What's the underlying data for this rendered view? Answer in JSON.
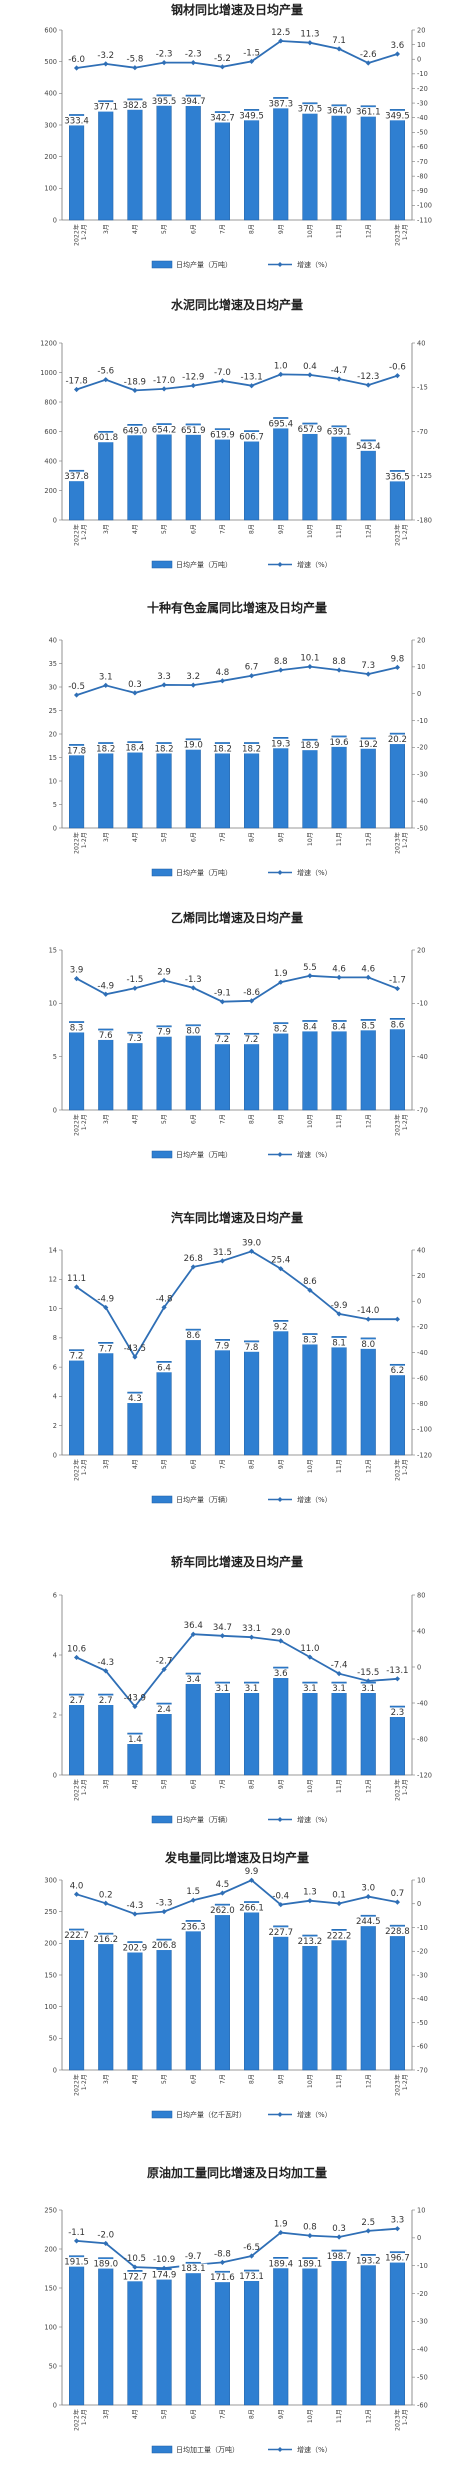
{
  "chart_data": [
    {
      "type": "bar+line",
      "title": "钢材同比增速及日均产量",
      "categories": [
        "2022年|1-2月",
        "3月",
        "4月",
        "5月",
        "6月",
        "7月",
        "8月",
        "9月",
        "10月",
        "11月",
        "12月",
        "2023年|1-2月"
      ],
      "series": [
        {
          "name": "日均产量（万吨）",
          "type": "bar",
          "axis": "left",
          "values": [
            333.4,
            377.1,
            382.8,
            395.5,
            394.7,
            342.7,
            349.5,
            387.3,
            370.5,
            364.0,
            361.1,
            349.5
          ],
          "labels": [
            "333.4",
            "377.1",
            "382.8",
            "395.5",
            "394.7",
            "342.7",
            "349.5",
            "387.3",
            "370.5",
            "364.0",
            "361.1",
            "349.5"
          ]
        },
        {
          "name": "增速（%）",
          "type": "line",
          "axis": "right",
          "values": [
            -6.0,
            -3.2,
            -5.8,
            -2.3,
            -2.3,
            -5.2,
            -1.5,
            12.5,
            11.3,
            7.1,
            -2.6,
            3.6
          ],
          "labels": [
            "-6.0",
            "-3.2",
            "-5.8",
            "-2.3",
            "-2.3",
            "-5.2",
            "-1.5",
            "12.5",
            "11.3",
            "7.1",
            "-2.6",
            "3.6"
          ]
        }
      ],
      "left_axis": {
        "min": 0,
        "max": 600,
        "ticks": [
          "0",
          "100",
          "200",
          "300",
          "400",
          "500",
          "600"
        ]
      },
      "right_axis": {
        "min": -110,
        "max": 20,
        "ticks": [
          "20",
          "10",
          "0",
          "-10",
          "-20",
          "-30",
          "-40",
          "-50",
          "-60",
          "-70",
          "-80",
          "-90",
          "-100",
          "-110"
        ]
      },
      "colors": {
        "bar": "#2f7fd1",
        "line": "#2f6fb6"
      }
    },
    {
      "type": "bar+line",
      "title": "水泥同比增速及日均产量",
      "categories": [
        "2022年|1-2月",
        "3月",
        "4月",
        "5月",
        "6月",
        "7月",
        "8月",
        "9月",
        "10月",
        "11月",
        "12月",
        "2023年|1-2月"
      ],
      "series": [
        {
          "name": "日均产量（万吨）",
          "type": "bar",
          "axis": "left",
          "values": [
            337.8,
            601.8,
            649.0,
            654.2,
            651.9,
            619.9,
            606.7,
            695.4,
            657.9,
            639.1,
            543.4,
            336.5
          ],
          "labels": [
            "337.8",
            "601.8",
            "649.0",
            "654.2",
            "651.9",
            "619.9",
            "606.7",
            "695.4",
            "657.9",
            "639.1",
            "543.4",
            "336.5"
          ]
        },
        {
          "name": "增速（%）",
          "type": "line",
          "axis": "right",
          "values": [
            -17.8,
            -5.6,
            -18.9,
            -17.0,
            -12.9,
            -7.0,
            -13.1,
            1.0,
            0.4,
            -4.7,
            -12.3,
            -0.6
          ],
          "labels": [
            "-17.8",
            "-5.6",
            "-18.9",
            "-17.0",
            "-12.9",
            "-7.0",
            "-13.1",
            "1.0",
            "0.4",
            "-4.7",
            "-12.3",
            "-0.6"
          ]
        }
      ],
      "left_axis": {
        "min": 0,
        "max": 1200,
        "ticks": [
          "0",
          "200",
          "400",
          "600",
          "800",
          "1000",
          "1200"
        ]
      },
      "right_axis": {
        "min": -180,
        "max": 40,
        "ticks": [
          "40",
          "-15",
          "-70",
          "-125",
          "-180"
        ]
      },
      "colors": {
        "bar": "#2f7fd1",
        "line": "#2f6fb6"
      }
    },
    {
      "type": "bar+line",
      "title": "十种有色金属同比增速及日均产量",
      "categories": [
        "2022年|1-2月",
        "3月",
        "4月",
        "5月",
        "6月",
        "7月",
        "8月",
        "9月",
        "10月",
        "11月",
        "12月",
        "2023年|1-2月"
      ],
      "series": [
        {
          "name": "日均产量（万吨）",
          "type": "bar",
          "axis": "left",
          "values": [
            17.8,
            18.2,
            18.4,
            18.2,
            19.0,
            18.2,
            18.2,
            19.3,
            18.9,
            19.6,
            19.2,
            20.2
          ],
          "labels": [
            "17.8",
            "18.2",
            "18.4",
            "18.2",
            "19.0",
            "18.2",
            "18.2",
            "19.3",
            "18.9",
            "19.6",
            "19.2",
            "20.2"
          ]
        },
        {
          "name": "增速（%）",
          "type": "line",
          "axis": "right",
          "values": [
            -0.5,
            3.1,
            0.3,
            3.3,
            3.2,
            4.8,
            6.7,
            8.8,
            10.1,
            8.8,
            7.3,
            9.8
          ],
          "labels": [
            "-0.5",
            "3.1",
            "0.3",
            "3.3",
            "3.2",
            "4.8",
            "6.7",
            "8.8",
            "10.1",
            "8.8",
            "7.3",
            "9.8"
          ]
        }
      ],
      "left_axis": {
        "min": 0,
        "max": 40,
        "ticks": [
          "0",
          "5",
          "10",
          "15",
          "20",
          "25",
          "30",
          "35",
          "40"
        ]
      },
      "right_axis": {
        "min": -50,
        "max": 20,
        "ticks": [
          "20",
          "10",
          "0",
          "-10",
          "-20",
          "-30",
          "-40",
          "-50"
        ]
      },
      "colors": {
        "bar": "#2f7fd1",
        "line": "#2f6fb6"
      }
    },
    {
      "type": "bar+line",
      "title": "乙烯同比增速及日均产量",
      "categories": [
        "2022年|1-2月",
        "3月",
        "4月",
        "5月",
        "6月",
        "7月",
        "8月",
        "9月",
        "10月",
        "11月",
        "12月",
        "2023年|1-2月"
      ],
      "series": [
        {
          "name": "日均产量（万吨）",
          "type": "bar",
          "axis": "left",
          "values": [
            8.3,
            7.6,
            7.3,
            7.9,
            8.0,
            7.2,
            7.2,
            8.2,
            8.4,
            8.4,
            8.5,
            8.6
          ],
          "labels": [
            "8.3",
            "7.6",
            "7.3",
            "7.9",
            "8.0",
            "7.2",
            "7.2",
            "8.2",
            "8.4",
            "8.4",
            "8.5",
            "8.6"
          ]
        },
        {
          "name": "增速（%）",
          "type": "line",
          "axis": "right",
          "values": [
            3.9,
            -4.9,
            -1.5,
            2.9,
            -1.3,
            -9.1,
            -8.6,
            1.9,
            5.5,
            4.6,
            4.6,
            -1.7
          ],
          "labels": [
            "3.9",
            "-4.9",
            "-1.5",
            "2.9",
            "-1.3",
            "-9.1",
            "-8.6",
            "1.9",
            "5.5",
            "4.6",
            "4.6",
            "-1.7"
          ]
        }
      ],
      "left_axis": {
        "min": 0,
        "max": 15,
        "ticks": [
          "0",
          "5",
          "10",
          "15"
        ]
      },
      "right_axis": {
        "min": -70,
        "max": 20,
        "ticks": [
          "20",
          "-10",
          "-40",
          "-70"
        ]
      },
      "colors": {
        "bar": "#2f7fd1",
        "line": "#2f6fb6"
      }
    },
    {
      "type": "bar+line",
      "title": "汽车同比增速及日均产量",
      "categories": [
        "2022年|1-2月",
        "3月",
        "4月",
        "5月",
        "6月",
        "7月",
        "8月",
        "9月",
        "10月",
        "11月",
        "12月",
        "2023年|1-2月"
      ],
      "series": [
        {
          "name": "日均产量（万辆）",
          "type": "bar",
          "axis": "left",
          "values": [
            7.2,
            7.7,
            4.3,
            6.4,
            8.6,
            7.9,
            7.8,
            9.2,
            8.3,
            8.1,
            8.0,
            6.2
          ],
          "labels": [
            "7.2",
            "7.7",
            "4.3",
            "6.4",
            "8.6",
            "7.9",
            "7.8",
            "9.2",
            "8.3",
            "8.1",
            "8.0",
            "6.2"
          ]
        },
        {
          "name": "增速（%）",
          "type": "line",
          "axis": "right",
          "values": [
            11.1,
            -4.9,
            -43.5,
            -4.8,
            26.8,
            31.5,
            39.0,
            25.4,
            8.6,
            -9.9,
            -14.0,
            -14.0
          ],
          "labels": [
            "11.1",
            "-4.9",
            "-43.5",
            "-4.8",
            "26.8",
            "31.5",
            "39.0",
            "25.4",
            "8.6",
            "-9.9",
            "-14.0",
            ""
          ]
        }
      ],
      "left_axis": {
        "min": 0,
        "max": 14,
        "ticks": [
          "0",
          "2",
          "4",
          "6",
          "8",
          "10",
          "12",
          "14"
        ]
      },
      "right_axis": {
        "min": -120,
        "max": 40,
        "ticks": [
          "40",
          "20",
          "0",
          "-20",
          "-40",
          "-60",
          "-80",
          "-100",
          "-120"
        ]
      },
      "colors": {
        "bar": "#2f7fd1",
        "line": "#2f6fb6"
      }
    },
    {
      "type": "bar+line",
      "title": "轿车同比增速及日均产量",
      "categories": [
        "2022年|1-2月",
        "3月",
        "4月",
        "5月",
        "6月",
        "7月",
        "8月",
        "9月",
        "10月",
        "11月",
        "12月",
        "2023年|1-2月"
      ],
      "series": [
        {
          "name": "日均产量（万辆）",
          "type": "bar",
          "axis": "left",
          "values": [
            2.7,
            2.7,
            1.4,
            2.4,
            3.4,
            3.1,
            3.1,
            3.6,
            3.1,
            3.1,
            3.1,
            2.3
          ],
          "labels": [
            "2.7",
            "2.7",
            "1.4",
            "2.4",
            "3.4",
            "3.1",
            "3.1",
            "3.6",
            "3.1",
            "3.1",
            "3.1",
            "2.3"
          ]
        },
        {
          "name": "增速（%）",
          "type": "line",
          "axis": "right",
          "values": [
            10.6,
            -4.3,
            -43.9,
            -2.7,
            36.4,
            34.7,
            33.1,
            29.0,
            11.0,
            -7.4,
            -15.5,
            -13.1
          ],
          "labels": [
            "10.6",
            "-4.3",
            "-43.9",
            "-2.7",
            "36.4",
            "34.7",
            "33.1",
            "29.0",
            "11.0",
            "-7.4",
            "-15.5",
            "-13.1"
          ]
        }
      ],
      "left_axis": {
        "min": 0,
        "max": 6,
        "ticks": [
          "0",
          "2",
          "4",
          "6"
        ]
      },
      "right_axis": {
        "min": -120,
        "max": 80,
        "ticks": [
          "80",
          "40",
          "0",
          "-40",
          "-80",
          "-120"
        ]
      },
      "colors": {
        "bar": "#2f7fd1",
        "line": "#2f6fb6"
      }
    },
    {
      "type": "bar+line",
      "title": "发电量同比增速及日均产量",
      "categories": [
        "2022年|1-2月",
        "3月",
        "4月",
        "5月",
        "6月",
        "7月",
        "8月",
        "9月",
        "10月",
        "11月",
        "12月",
        "2023年|1-2月"
      ],
      "series": [
        {
          "name": "日均产量（亿千瓦时）",
          "type": "bar",
          "axis": "left",
          "values": [
            222.7,
            216.2,
            202.9,
            206.8,
            236.3,
            262.0,
            266.1,
            227.7,
            213.2,
            222.2,
            244.5,
            228.8
          ],
          "labels": [
            "222.7",
            "216.2",
            "202.9",
            "206.8",
            "236.3",
            "262.0",
            "266.1",
            "227.7",
            "213.2",
            "222.2",
            "244.5",
            "228.8"
          ]
        },
        {
          "name": "增速（%）",
          "type": "line",
          "axis": "right",
          "values": [
            4.0,
            0.2,
            -4.3,
            -3.3,
            1.5,
            4.5,
            9.9,
            -0.4,
            1.3,
            0.1,
            3.0,
            0.7
          ],
          "labels": [
            "4.0",
            "0.2",
            "-4.3",
            "-3.3",
            "1.5",
            "4.5",
            "9.9",
            "-0.4",
            "1.3",
            "0.1",
            "3.0",
            "0.7"
          ]
        }
      ],
      "left_axis": {
        "min": 0,
        "max": 300,
        "ticks": [
          "0",
          "50",
          "100",
          "150",
          "200",
          "250",
          "300"
        ]
      },
      "right_axis": {
        "min": -70,
        "max": 10,
        "ticks": [
          "10",
          "0",
          "-10",
          "-20",
          "-30",
          "-40",
          "-50",
          "-60",
          "-70"
        ]
      },
      "colors": {
        "bar": "#2f7fd1",
        "line": "#2f6fb6"
      }
    },
    {
      "type": "bar+line",
      "title": "原油加工量同比增速及日均加工量",
      "categories": [
        "2022年|1-2月",
        "3月",
        "4月",
        "5月",
        "6月",
        "7月",
        "8月",
        "9月",
        "10月",
        "11月",
        "12月",
        "2023年|1-2月"
      ],
      "series": [
        {
          "name": "日均加工量（万吨）",
          "type": "bar",
          "axis": "left",
          "values": [
            191.5,
            189.0,
            172.7,
            174.9,
            183.1,
            171.6,
            173.1,
            189.4,
            189.1,
            198.7,
            193.2,
            196.7
          ],
          "labels": [
            "191.5",
            "189.0",
            "172.7",
            "174.9",
            "183.1",
            "171.6",
            "173.1",
            "189.4",
            "189.1",
            "198.7",
            "193.2",
            "196.7"
          ]
        },
        {
          "name": "增速（%）",
          "type": "line",
          "axis": "right",
          "values": [
            -1.1,
            -2.0,
            -10.5,
            -10.9,
            -9.7,
            -8.8,
            -6.5,
            1.9,
            0.8,
            0.3,
            2.5,
            3.3
          ],
          "labels": [
            "-1.1",
            "-2.0",
            "-10.5",
            "-10.9",
            "-9.7",
            "-8.8",
            "-6.5",
            "1.9",
            "0.8",
            "0.3",
            "2.5",
            "3.3"
          ]
        }
      ],
      "left_axis": {
        "min": 0,
        "max": 250,
        "ticks": [
          "0",
          "50",
          "100",
          "150",
          "200",
          "250"
        ]
      },
      "right_axis": {
        "min": -60,
        "max": 10,
        "ticks": [
          "10",
          "0",
          "-10",
          "-20",
          "-30",
          "-40",
          "-50",
          "-60"
        ]
      },
      "colors": {
        "bar": "#2f7fd1",
        "line": "#2f6fb6"
      }
    }
  ]
}
